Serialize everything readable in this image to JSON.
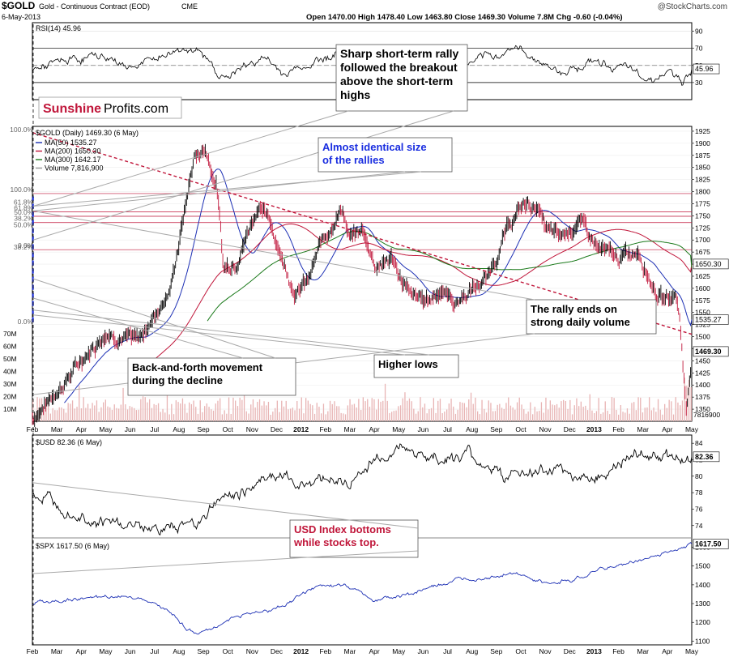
{
  "header": {
    "symbol": "$GOLD",
    "name": "Gold - Continuous Contract (EOD)",
    "exchange": "CME",
    "date": "6-May-2013",
    "ohlc": "Open 1470.00  High 1478.40  Low 1463.80  Close 1469.30  Volume 7.8M  Chg -0.60 (-0.04%)",
    "watermark": "@StockCharts.com"
  },
  "brand": {
    "sunshine": "Sunshine",
    "profits": "Profits.com"
  },
  "colors": {
    "ma50": "#1c2fb4",
    "ma200": "#c0163a",
    "ma300": "#1b7a1b",
    "price": "#000000",
    "annot_blue": "#1a2ee0",
    "annot_red": "#c0163a",
    "trend": "#c0163a",
    "volume": "#e8b4b4"
  },
  "months": {
    "gold": [
      "Feb",
      "Mar",
      "Apr",
      "May",
      "Jun",
      "Jul",
      "Aug",
      "Sep",
      "Oct",
      "Nov",
      "Dec",
      "2012",
      "Feb",
      "Mar",
      "Apr",
      "May",
      "Jun",
      "Jul",
      "Aug",
      "Sep",
      "Oct",
      "Nov",
      "Dec",
      "2013",
      "Feb",
      "Mar",
      "Apr",
      "May"
    ],
    "bottom": [
      "Feb",
      "Mar",
      "Apr",
      "May",
      "Jun",
      "Jul",
      "Aug",
      "Sep",
      "Oct",
      "Nov",
      "Dec",
      "2012",
      "Feb",
      "Mar",
      "Apr",
      "May",
      "Jun",
      "Jul",
      "Aug",
      "Sep",
      "Oct",
      "Nov",
      "Dec",
      "2013",
      "Feb",
      "Mar",
      "Apr",
      "May"
    ]
  },
  "chart_data": [
    {
      "type": "line",
      "title": "RSI(14) 45.96",
      "ylim": [
        10,
        100
      ],
      "ticks": [
        90,
        70,
        50,
        30
      ],
      "current_label": "45.96",
      "overbought": 70,
      "oversold": 30
    },
    {
      "type": "line",
      "title": "$GOLD (Daily) 1469.30 (6 May)",
      "legend": [
        "MA(50) 1535.27",
        "MA(200) 1650.30",
        "MA(300) 1642.17",
        "Volume 7,816,900"
      ],
      "ylim": [
        1325,
        1935
      ],
      "ticks": [
        1925,
        1900,
        1875,
        1850,
        1825,
        1800,
        1775,
        1750,
        1725,
        1700,
        1675,
        1650,
        1625,
        1600,
        1575,
        1550,
        1525,
        1500,
        1475,
        1450,
        1425,
        1400,
        1375,
        1350
      ],
      "right_labels": [
        "1650.30",
        "1535.27",
        "1469.30"
      ],
      "volume_ticks": [
        "70M",
        "60M",
        "50M",
        "40M",
        "30M",
        "20M",
        "10M"
      ],
      "volume_current": "7816900",
      "fib_left": [
        {
          "label": "100.0%",
          "value": 1920
        },
        {
          "label": "61.8%",
          "value": 1770
        },
        {
          "label": "50.0%",
          "value": 1723
        },
        {
          "label": "38.2%",
          "value": 1677
        },
        {
          "label": "0.0%",
          "value": 1523
        }
      ],
      "fib_right": [
        {
          "label": "100.0%",
          "value": 1796
        },
        {
          "label": "61.8%",
          "value": 1758
        },
        {
          "label": "50.0%",
          "value": 1749
        },
        {
          "label": "38.2%",
          "value": 1736
        },
        {
          "label": "0.0%",
          "value": 1680
        }
      ],
      "annotations": [
        "Sharp short-term rally followed the breakout above the short-term highs",
        "Almost identical size of the rallies",
        "The rally ends on strong daily volume",
        "Back-and-forth movement during the decline",
        "Higher lows",
        "USD Index bottoms while stocks top."
      ]
    },
    {
      "type": "line",
      "title": "$USD 82.36 (6 May)",
      "ylim": [
        72.5,
        85
      ],
      "ticks": [
        84,
        82,
        80,
        78,
        76,
        74
      ],
      "current_label": "82.36"
    },
    {
      "type": "line",
      "title": "$SPX 1617.50 (6 May)",
      "ylim": [
        1080,
        1650
      ],
      "ticks": [
        1600,
        1500,
        1400,
        1300,
        1200,
        1100
      ],
      "current_label": "1617.50"
    }
  ]
}
